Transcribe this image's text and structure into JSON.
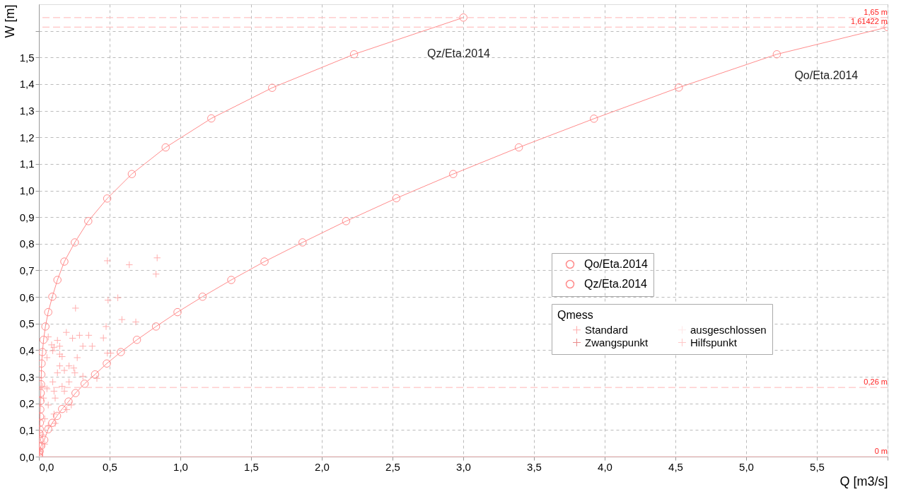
{
  "chart_data": {
    "type": "line",
    "xlabel": "Q [m3/s]",
    "ylabel": "W [m]",
    "legend_title": "Qmess",
    "xlim": [
      0,
      6.0
    ],
    "ylim": [
      0,
      1.7
    ],
    "xticks": [
      {
        "value": 0,
        "label": "0,0"
      },
      {
        "value": 0.5,
        "label": "0,5"
      },
      {
        "value": 1.0,
        "label": "1,0"
      },
      {
        "value": 1.5,
        "label": "1,5"
      },
      {
        "value": 2.0,
        "label": "2,0"
      },
      {
        "value": 2.5,
        "label": "2,5"
      },
      {
        "value": 3.0,
        "label": "3,0"
      },
      {
        "value": 3.5,
        "label": "3,5"
      },
      {
        "value": 4.0,
        "label": "4,0"
      },
      {
        "value": 4.5,
        "label": "4,5"
      },
      {
        "value": 5.0,
        "label": "5,0"
      },
      {
        "value": 5.5,
        "label": "5,5"
      },
      {
        "value": 6.0,
        "label": null
      }
    ],
    "yticks": [
      {
        "value": 0,
        "label": "0,0"
      },
      {
        "value": 0.1,
        "label": "0,1"
      },
      {
        "value": 0.2,
        "label": "0,2"
      },
      {
        "value": 0.3,
        "label": "0,3"
      },
      {
        "value": 0.4,
        "label": "0,4"
      },
      {
        "value": 0.5,
        "label": "0,5"
      },
      {
        "value": 0.6,
        "label": "0,6"
      },
      {
        "value": 0.7,
        "label": "0,7"
      },
      {
        "value": 0.8,
        "label": "0,8"
      },
      {
        "value": 0.9,
        "label": "0,9"
      },
      {
        "value": 1.0,
        "label": "1,0"
      },
      {
        "value": 1.1,
        "label": "1,1"
      },
      {
        "value": 1.2,
        "label": "1,2"
      },
      {
        "value": 1.3,
        "label": "1,3"
      },
      {
        "value": 1.4,
        "label": "1,4"
      },
      {
        "value": 1.5,
        "label": "1,5"
      },
      {
        "value": 1.6,
        "label": null
      }
    ],
    "grid": true,
    "legend": "right",
    "marker": "circle",
    "line_style": "solid",
    "series": [
      {
        "name": "Qo/Eta.2014",
        "type": "line",
        "color": "#ff8c8c",
        "x": [
          0,
          0.005,
          0.015,
          0.038,
          0.066,
          0.095,
          0.128,
          0.164,
          0.21,
          0.259,
          0.323,
          0.397,
          0.48,
          0.579,
          0.693,
          0.828,
          0.98,
          1.157,
          1.36,
          1.595,
          1.864,
          2.172,
          2.527,
          2.929,
          3.393,
          3.924,
          4.524,
          5.217,
          6.0
        ],
        "values": [
          0,
          0.02,
          0.04,
          0.063,
          0.103,
          0.127,
          0.153,
          0.179,
          0.207,
          0.239,
          0.274,
          0.309,
          0.35,
          0.393,
          0.439,
          0.489,
          0.543,
          0.601,
          0.664,
          0.733,
          0.805,
          0.885,
          0.971,
          1.062,
          1.162,
          1.27,
          1.387,
          1.512,
          1.614
        ]
      },
      {
        "name": "Qz/Eta.2014",
        "type": "line",
        "color": "#ff8c8c",
        "x": [
          0,
          0.001,
          0.002,
          0.003,
          0.004,
          0.005,
          0.006,
          0.007,
          0.008,
          0.01,
          0.011,
          0.013,
          0.015,
          0.017,
          0.019,
          0.025,
          0.033,
          0.046,
          0.066,
          0.095,
          0.131,
          0.18,
          0.254,
          0.349,
          0.483,
          0.657,
          0.896,
          1.219,
          1.649,
          2.228,
          3.001
        ],
        "values": [
          0,
          0.008,
          0.019,
          0.038,
          0.065,
          0.086,
          0.103,
          0.127,
          0.151,
          0.177,
          0.209,
          0.239,
          0.272,
          0.309,
          0.35,
          0.393,
          0.439,
          0.489,
          0.543,
          0.601,
          0.664,
          0.733,
          0.805,
          0.885,
          0.97,
          1.062,
          1.162,
          1.271,
          1.386,
          1.512,
          1.65
        ]
      },
      {
        "name": "Standard",
        "type": "scatter",
        "marker": "cross",
        "color": "#ff8c8c",
        "x": [
          0.484,
          0.639,
          0.836,
          0.828,
          0.489,
          0.558,
          0.259,
          0.587,
          0.685,
          0.475,
          0.456,
          0.508,
          0.484,
          0.194,
          0.238,
          0.287,
          0.352,
          0.377,
          0.311,
          0.147,
          0.098,
          0.057,
          0.271,
          0.164,
          0.213,
          0.147,
          0.246,
          0.18,
          0.131,
          0.098,
          0.057,
          0.107,
          0.164,
          0.213,
          0.254,
          0.311,
          0.41,
          0.025,
          0.033,
          0.066,
          0.115,
          0.18,
          0.229,
          0.197,
          0.107,
          0.041,
          0.066,
          0.115,
          0.025,
          0.041,
          0.008,
          0.147,
          0.09,
          0.131,
          0.066,
          0.107
        ],
        "values": [
          0.736,
          0.721,
          0.747,
          0.686,
          0.588,
          0.597,
          0.558,
          0.515,
          0.506,
          0.489,
          0.446,
          0.389,
          0.389,
          0.467,
          0.445,
          0.456,
          0.456,
          0.415,
          0.415,
          0.415,
          0.398,
          0.372,
          0.372,
          0.376,
          0.341,
          0.341,
          0.333,
          0.324,
          0.315,
          0.281,
          0.255,
          0.246,
          0.264,
          0.281,
          0.315,
          0.302,
          0.294,
          0.264,
          0.22,
          0.194,
          0.22,
          0.246,
          0.194,
          0.177,
          0.16,
          0.142,
          0.116,
          0.125,
          0.082,
          0.047,
          0.021,
          0.385,
          0.42,
          0.437,
          0.45,
          0.411
        ]
      },
      {
        "name": "ausgeschlossen",
        "type": "scatter",
        "marker": "cross",
        "color": "#ffdede"
      },
      {
        "name": "Zwangspunkt",
        "type": "scatter",
        "marker": "cross",
        "color": "#e05a5a"
      },
      {
        "name": "Hilfspunkt",
        "type": "scatter",
        "marker": "cross",
        "color": "#ffb0b0"
      }
    ],
    "ref_lines": [
      {
        "axis": "y",
        "value": 1.65,
        "label": "1,65 m",
        "color": "#ffc4c4",
        "line_style": "dashed"
      },
      {
        "axis": "y",
        "value": 1.61422,
        "label": "1,61422 m",
        "color": "#ffc4c4",
        "line_style": "dashed"
      },
      {
        "axis": "y",
        "value": 0.26,
        "label": "0,26 m",
        "color": "#ffc4c4",
        "line_style": "dashed"
      },
      {
        "axis": "y",
        "value": 0,
        "label": "0 m",
        "color": "#ffc4c4",
        "line_style": "solid"
      }
    ],
    "annotations": [
      {
        "text": "Qz/Eta.2014",
        "x": 2.62,
        "y": 1.594
      },
      {
        "text": "Qo/Eta.2014",
        "x": 5.217,
        "y": 1.512
      }
    ]
  }
}
